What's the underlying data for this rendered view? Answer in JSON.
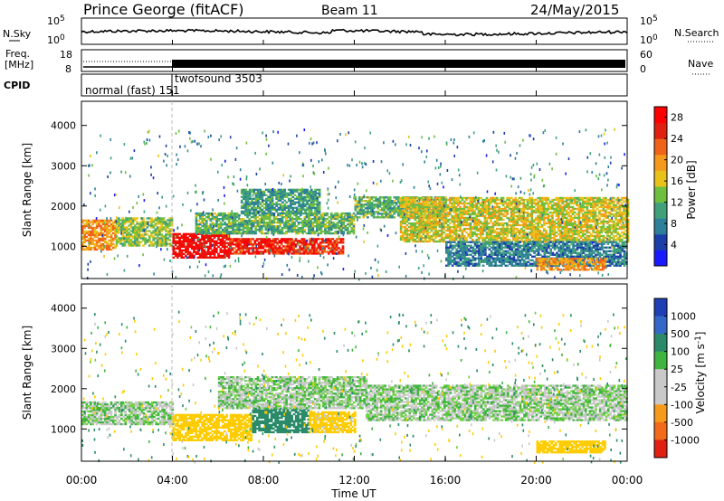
{
  "header": {
    "station": "Prince George (fitACF)",
    "beam": "Beam 11",
    "date": "24/May/2015"
  },
  "top_panels": {
    "nsky_label": "N.Sky",
    "nsky_ticks": [
      "10^5",
      "10^0"
    ],
    "nsearch_label": "N.Search",
    "nsearch_ticks": [
      "10^5",
      "10^0"
    ],
    "freq_label": "Freq.",
    "freq_unit": "[MHz]",
    "freq_ticks": [
      "18",
      "8"
    ],
    "nave_label": "Nave",
    "nave_ticks": [
      "60",
      "0"
    ],
    "cpid_label": "CPID",
    "cpid_segments": [
      {
        "label": "normal (fast) 151",
        "start_hour": 0,
        "end_hour": 4
      },
      {
        "label": "twofsound 3503",
        "start_hour": 4,
        "end_hour": 24
      }
    ]
  },
  "colors": {
    "power_scale": [
      "#1a1aff",
      "#1a3fa8",
      "#2e7f9a",
      "#3fa07a",
      "#6fbf3f",
      "#e8c21a",
      "#f59a1a",
      "#f0641a",
      "#e02010",
      "#ff0000"
    ],
    "velocity_scale": [
      "#1f3fb4",
      "#3468c8",
      "#2a8a6a",
      "#3fb440",
      "#6fd23f",
      "#c9c9c9",
      "#c9c9c9",
      "#ffcc00",
      "#f59a1a",
      "#f26a1a",
      "#e02010"
    ]
  },
  "chart_data": [
    {
      "type": "heatmap",
      "panel": "power",
      "ylabel": "Slant Range [km]",
      "xlabel": "Time UT",
      "x_ticks": [
        "00:00",
        "04:00",
        "08:00",
        "12:00",
        "16:00",
        "20:00",
        "00:00"
      ],
      "xlim_hours": [
        0,
        24
      ],
      "y_ticks": [
        1000,
        2000,
        3000,
        4000
      ],
      "ylim": [
        200,
        4600
      ],
      "colorbar_label": "Power [dB]",
      "colorbar_ticks": [
        4,
        8,
        12,
        16,
        20,
        24,
        28
      ],
      "colorbar_range": [
        0,
        30
      ],
      "regions": [
        {
          "t0": 0.0,
          "t1": 1.5,
          "r0": 900,
          "r1": 1650,
          "level": 20
        },
        {
          "t0": 1.5,
          "t1": 4.0,
          "r0": 1000,
          "r1": 1700,
          "level": 14
        },
        {
          "t0": 4.0,
          "t1": 6.5,
          "r0": 700,
          "r1": 1300,
          "level": 28
        },
        {
          "t0": 6.5,
          "t1": 11.5,
          "r0": 800,
          "r1": 1200,
          "level": 26
        },
        {
          "t0": 5.0,
          "t1": 12.0,
          "r0": 1300,
          "r1": 1800,
          "level": 12
        },
        {
          "t0": 7.0,
          "t1": 10.5,
          "r0": 1800,
          "r1": 2400,
          "level": 10
        },
        {
          "t0": 12.0,
          "t1": 16.0,
          "r0": 1700,
          "r1": 2200,
          "level": 12
        },
        {
          "t0": 14.0,
          "t1": 24.0,
          "r0": 1100,
          "r1": 2200,
          "level": 16
        },
        {
          "t0": 16.0,
          "t1": 24.0,
          "r0": 500,
          "r1": 1100,
          "level": 8
        },
        {
          "t0": 20.0,
          "t1": 23.0,
          "r0": 400,
          "r1": 700,
          "level": 20
        }
      ]
    },
    {
      "type": "heatmap",
      "panel": "velocity",
      "ylabel": "Slant Range [km]",
      "xlabel": "Time UT",
      "x_ticks": [
        "00:00",
        "04:00",
        "08:00",
        "12:00",
        "16:00",
        "20:00",
        "00:00"
      ],
      "xlim_hours": [
        0,
        24
      ],
      "y_ticks": [
        1000,
        2000,
        3000,
        4000
      ],
      "ylim": [
        200,
        4600
      ],
      "colorbar_label": "Velocity [m s^-1]",
      "colorbar_ticks": [
        "1000",
        "500",
        "100",
        "25",
        "-25",
        "-100",
        "-500",
        "-1000"
      ],
      "regions": [
        {
          "t0": 0.0,
          "t1": 4.0,
          "r0": 1100,
          "r1": 1650,
          "value": 0
        },
        {
          "t0": 4.0,
          "t1": 7.5,
          "r0": 700,
          "r1": 1350,
          "value": -300
        },
        {
          "t0": 7.5,
          "t1": 10.0,
          "r0": 900,
          "r1": 1500,
          "value": 300
        },
        {
          "t0": 10.0,
          "t1": 12.0,
          "r0": 900,
          "r1": 1400,
          "value": -150
        },
        {
          "t0": 6.0,
          "t1": 12.5,
          "r0": 1500,
          "r1": 2300,
          "value": 0
        },
        {
          "t0": 12.5,
          "t1": 24.0,
          "r0": 1200,
          "r1": 2100,
          "value": 0
        },
        {
          "t0": 20.0,
          "t1": 23.0,
          "r0": 400,
          "r1": 700,
          "value": -300
        }
      ]
    }
  ]
}
